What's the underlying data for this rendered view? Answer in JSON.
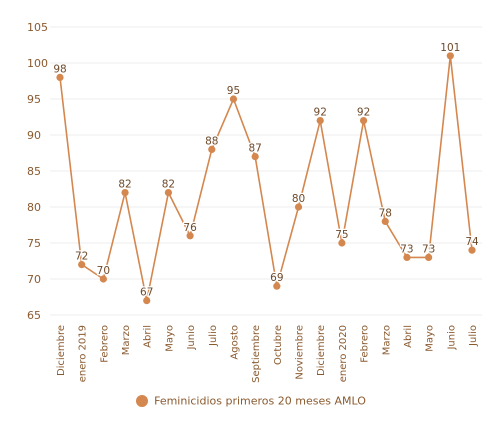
{
  "chart_data": {
    "type": "line",
    "categories": [
      "Diciembre",
      "enero 2019",
      "Febrero",
      "Marzo",
      "Abril",
      "Mayo",
      "Junio",
      "Julio",
      "Agosto",
      "Septiembre",
      "Octubre",
      "Noviembre",
      "Diciembre",
      "enero 2020",
      "Febrero",
      "Marzo",
      "Abril",
      "Mayo",
      "Junio",
      "Julio"
    ],
    "series": [
      {
        "name": "Feminicidios primeros 20 meses AMLO",
        "values": [
          98,
          72,
          70,
          82,
          67,
          82,
          76,
          88,
          95,
          87,
          69,
          80,
          92,
          75,
          92,
          78,
          73,
          73,
          101,
          74
        ]
      }
    ],
    "ylim": [
      65,
      105
    ],
    "yticks": [
      65,
      70,
      75,
      80,
      85,
      90,
      95,
      100,
      105
    ],
    "grid": true,
    "legend_position": "bottom",
    "colors": {
      "line": "#d4874e",
      "text": "#8a5a2f",
      "grid": "#ececec"
    }
  }
}
